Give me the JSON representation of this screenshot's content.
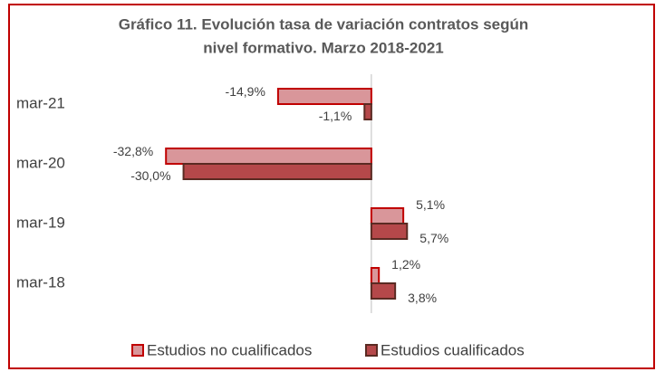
{
  "chart_data": {
    "type": "hbar",
    "title": [
      "Gráfico 11. Evolución tasa de variación contratos según",
      "nivel formativo. Marzo 2018-2021"
    ],
    "categories": [
      "mar-21",
      "mar-20",
      "mar-19",
      "mar-18"
    ],
    "series": [
      {
        "name": "Estudios no cualificados",
        "color": "#d9969a",
        "edge": "#c00000",
        "values": [
          -14.9,
          -32.8,
          5.1,
          1.2
        ],
        "value_labels": [
          "-14,9%",
          "-32,8%",
          "5,1%",
          "1,2%"
        ]
      },
      {
        "name": "Estudios cualificados",
        "color": "#b5484a",
        "edge": "#5a2a22",
        "values": [
          -1.1,
          -30.0,
          5.7,
          3.8
        ],
        "value_labels": [
          "-1,1%",
          "-30,0%",
          "5,7%",
          "3,8%"
        ]
      }
    ],
    "xlim": [
      -35,
      10
    ],
    "legend": "bottom"
  }
}
